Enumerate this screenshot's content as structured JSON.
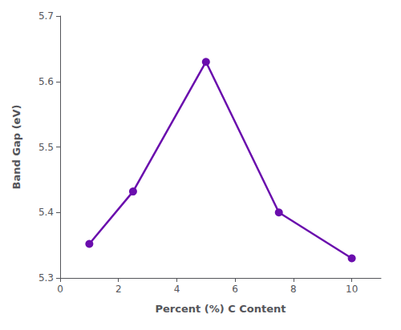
{
  "chart_data": {
    "type": "line",
    "x": [
      1,
      2.5,
      5,
      7.5,
      10
    ],
    "values": [
      5.352,
      5.432,
      5.63,
      5.4,
      5.33
    ],
    "color": "#6A0DAD",
    "marker": "circle",
    "xlabel": "Percent (%) C Content",
    "ylabel": "Band Gap (eV)",
    "xlim": [
      0,
      11
    ],
    "ylim": [
      5.3,
      5.7
    ],
    "xticks": [
      0,
      2,
      4,
      6,
      8,
      10
    ],
    "yticks": [
      5.3,
      5.4,
      5.5,
      5.6,
      5.7
    ],
    "grid": false
  }
}
